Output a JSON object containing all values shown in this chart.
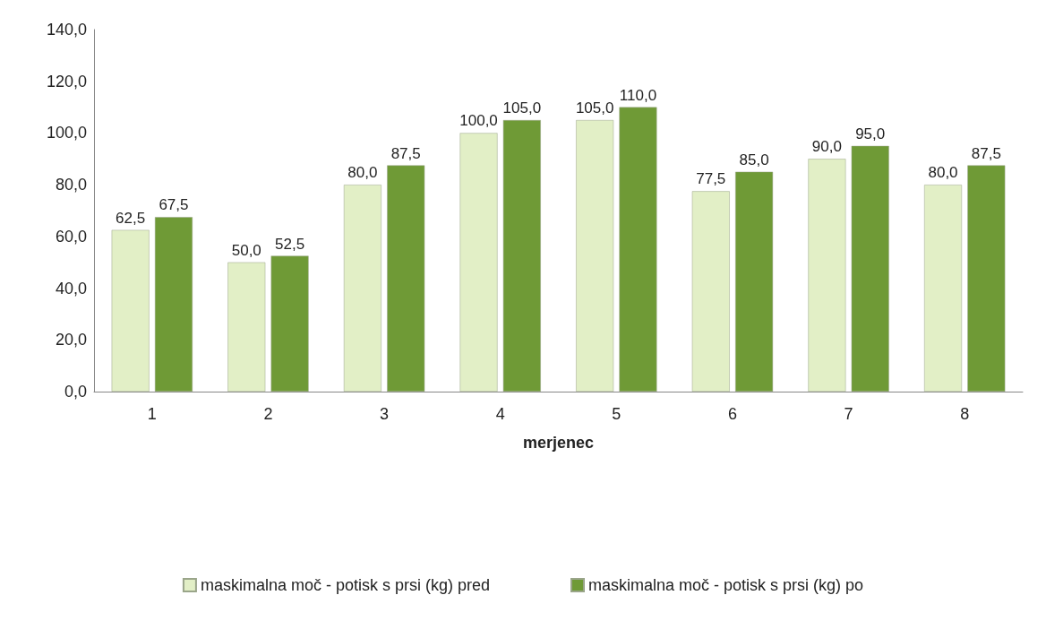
{
  "chart_data": {
    "type": "bar",
    "xlabel": "merjenec",
    "categories": [
      "1",
      "2",
      "3",
      "4",
      "5",
      "6",
      "7",
      "8"
    ],
    "series": [
      {
        "name": "maskimalna moč - potisk s prsi (kg) pred",
        "color": "#e2efc6",
        "values": [
          62.5,
          50,
          80,
          100,
          105,
          77.5,
          90,
          80
        ],
        "value_labels": [
          "62,5",
          "50,0",
          "80,0",
          "100,0",
          "105,0",
          "77,5",
          "90,0",
          "80,0"
        ]
      },
      {
        "name": "maskimalna moč - potisk s prsi (kg) po",
        "color": "#6f9a36",
        "values": [
          67.5,
          52.5,
          87.5,
          105,
          110,
          85,
          95,
          87.5
        ],
        "value_labels": [
          "67,5",
          "52,5",
          "87,5",
          "105,0",
          "110,0",
          "85,0",
          "95,0",
          "87,5"
        ]
      }
    ],
    "ylim": [
      0,
      140
    ],
    "yticks": [
      {
        "value": 0,
        "label": "0,0"
      },
      {
        "value": 20,
        "label": "20,0"
      },
      {
        "value": 40,
        "label": "40,0"
      },
      {
        "value": 60,
        "label": "60,0"
      },
      {
        "value": 80,
        "label": "80,0"
      },
      {
        "value": 100,
        "label": "100,0"
      },
      {
        "value": 120,
        "label": "120,0"
      },
      {
        "value": 140,
        "label": "140,0"
      }
    ],
    "grid": false,
    "legend": "bottom"
  }
}
